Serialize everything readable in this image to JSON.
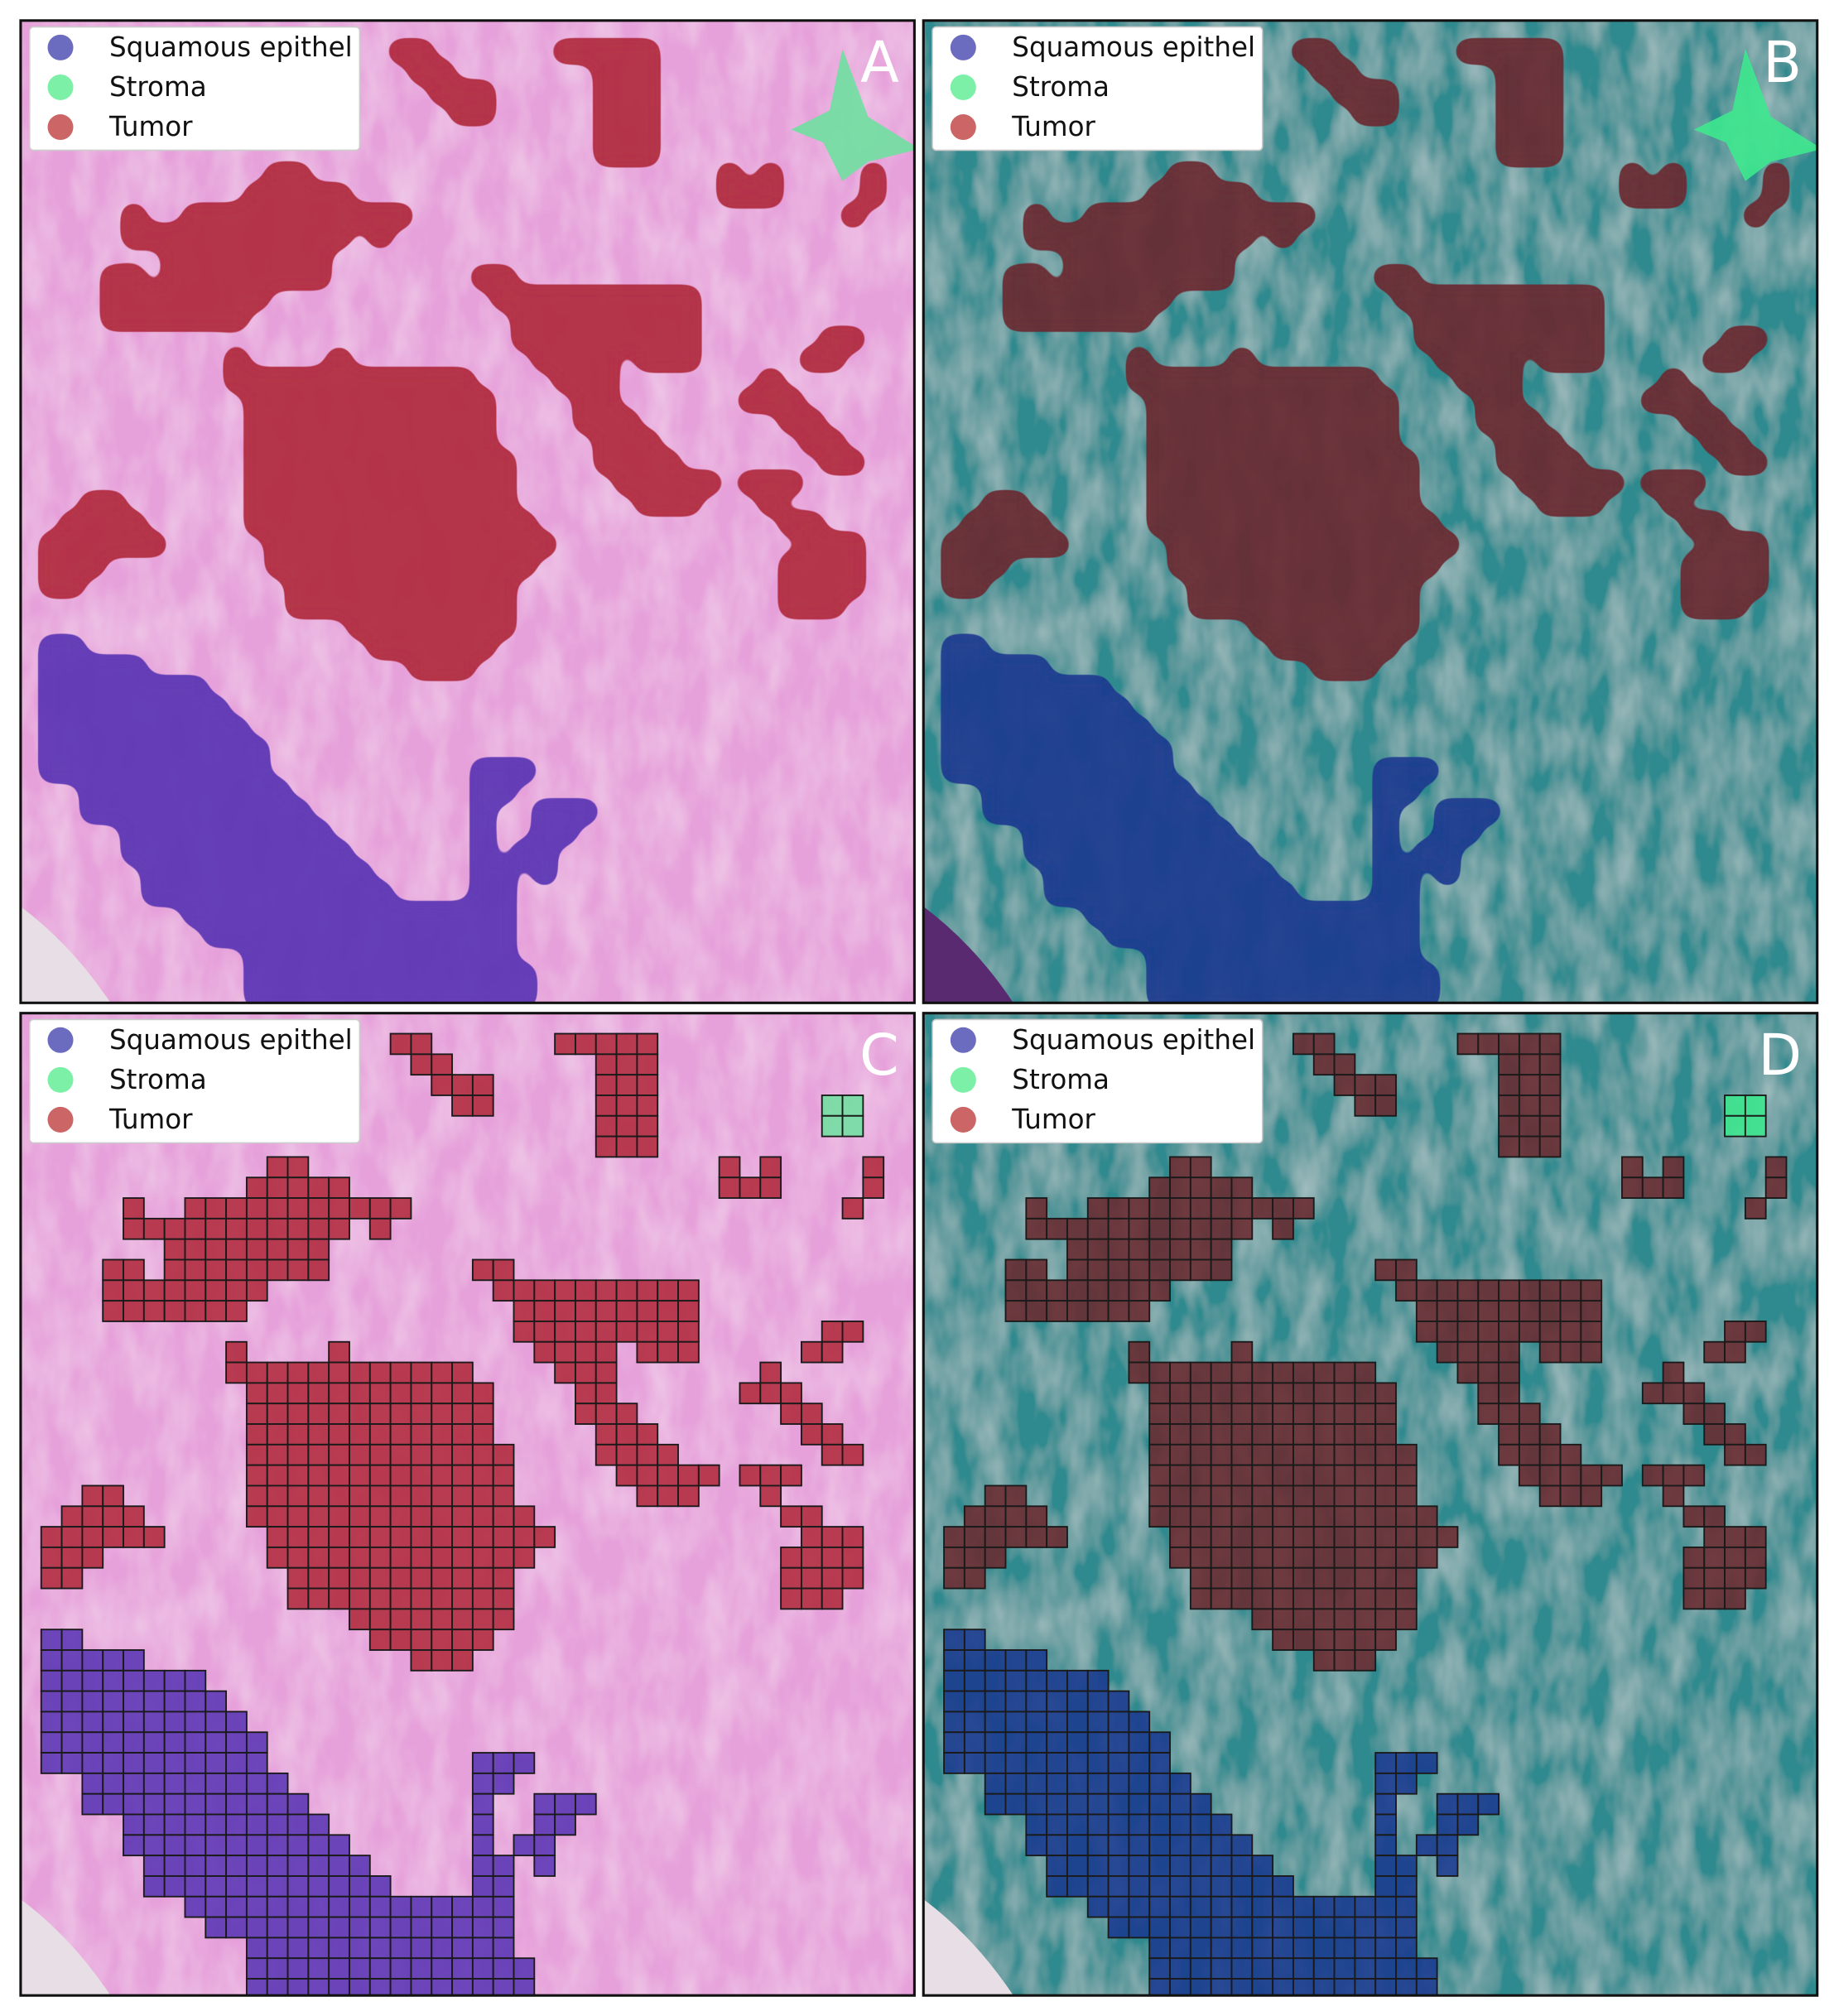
{
  "panels": [
    {
      "label": "A",
      "legend": [
        "Squamous epithel",
        "Stroma",
        "Tumor"
      ]
    },
    {
      "label": "B",
      "legend": [
        "Squamous epithel",
        "Stroma",
        "Tumor"
      ]
    },
    {
      "label": "C",
      "legend": [
        "Squamous epithel",
        "Stroma",
        "Tumor"
      ]
    },
    {
      "label": "D",
      "legend": [
        "Squamous epithel",
        "Stroma",
        "Tumor"
      ]
    }
  ]
}
